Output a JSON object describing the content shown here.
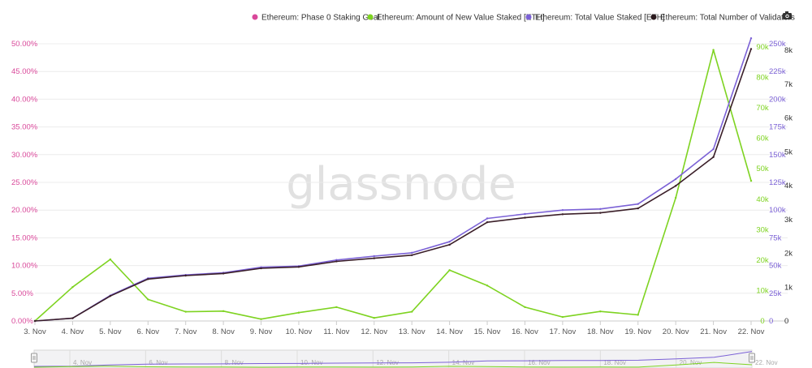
{
  "watermark": "glassnode",
  "legend": [
    {
      "label": "Ethereum: Phase 0 Staking Goal",
      "color": "#d9489a"
    },
    {
      "label": "Ethereum: Amount of New Value Staked [ETH]",
      "color": "#7ed321"
    },
    {
      "label": "Ethereum: Total Value Staked [ETH]",
      "color": "#7b61d6"
    },
    {
      "label": "Ethereum: Total Number of Validators",
      "color": "#2a1a1e"
    }
  ],
  "camera_icon": "camera-icon",
  "chart_data": {
    "type": "line",
    "x": [
      "3. Nov",
      "4. Nov",
      "5. Nov",
      "6. Nov",
      "7. Nov",
      "8. Nov",
      "9. Nov",
      "10. Nov",
      "11. Nov",
      "12. Nov",
      "13. Nov",
      "14. Nov",
      "15. Nov",
      "16. Nov",
      "17. Nov",
      "18. Nov",
      "19. Nov",
      "20. Nov",
      "21. Nov",
      "22. Nov"
    ],
    "axes": {
      "goal_pct": {
        "ticks": [
          "0.00%",
          "5.00%",
          "10.00%",
          "15.00%",
          "20.00%",
          "25.00%",
          "30.00%",
          "35.00%",
          "40.00%",
          "45.00%",
          "50.00%"
        ],
        "range": [
          0,
          50
        ],
        "color": "#d9489a"
      },
      "new_staked": {
        "ticks": [
          "0",
          "10k",
          "20k",
          "30k",
          "40k",
          "50k",
          "60k",
          "70k",
          "80k",
          "90k"
        ],
        "range": [
          0,
          90000
        ],
        "color": "#7ed321"
      },
      "total_staked": {
        "ticks": [
          "0",
          "25k",
          "50k",
          "75k",
          "100k",
          "125k",
          "150k",
          "175k",
          "200k",
          "225k",
          "250k"
        ],
        "range": [
          0,
          250000
        ],
        "color": "#7b61d6"
      },
      "validators": {
        "ticks": [
          "0",
          "1k",
          "2k",
          "3k",
          "4k",
          "5k",
          "6k",
          "7k",
          "8k"
        ],
        "range": [
          0,
          8000
        ],
        "color": "#333333"
      }
    },
    "series": [
      {
        "name": "Ethereum: Amount of New Value Staked [ETH]",
        "axis": "new_staked",
        "color": "#7ed321",
        "values": [
          0,
          11000,
          20000,
          7000,
          3000,
          3200,
          600,
          2700,
          4500,
          1000,
          3000,
          16500,
          11500,
          4500,
          1300,
          3100,
          2000,
          40000,
          88000,
          45500
        ]
      },
      {
        "name": "Ethereum: Total Value Staked [ETH]",
        "axis": "total_staked",
        "color": "#7b61d6",
        "values": [
          0,
          2500,
          23000,
          38500,
          41500,
          43500,
          48500,
          49500,
          55000,
          58500,
          61500,
          71500,
          92500,
          96500,
          100000,
          101000,
          105500,
          128000,
          155000,
          255000
        ]
      },
      {
        "name": "Ethereum: Total Number of Validators",
        "axis": "validators",
        "color": "#3a1e28",
        "values": [
          0,
          80,
          720,
          1210,
          1310,
          1370,
          1520,
          1560,
          1720,
          1810,
          1900,
          2200,
          2850,
          2980,
          3080,
          3120,
          3250,
          3900,
          4730,
          7850
        ]
      }
    ],
    "navigator": {
      "labels": [
        "4. Nov",
        "6. Nov",
        "8. Nov",
        "10. Nov",
        "12. Nov",
        "14. Nov",
        "16. Nov",
        "18. Nov",
        "20. Nov",
        "22. Nov"
      ]
    }
  }
}
